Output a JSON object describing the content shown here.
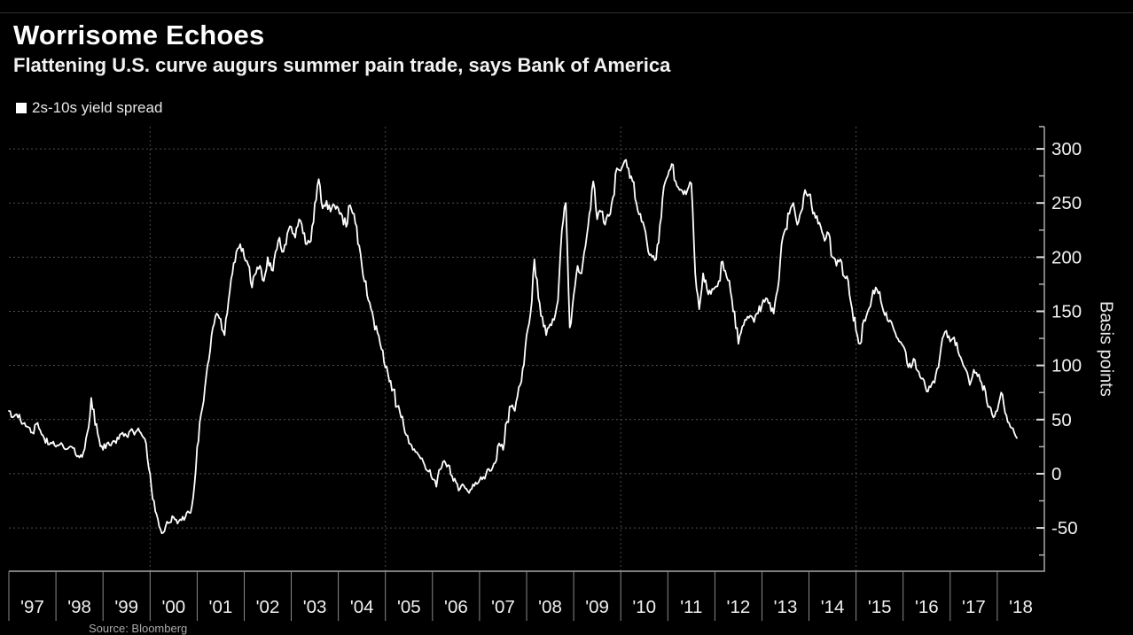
{
  "header": {
    "title": "Worrisome Echoes",
    "subtitle": "Flattening U.S. curve augurs summer pain trade, says Bank of America"
  },
  "footer": {
    "source": "Source: Bloomberg"
  },
  "colors": {
    "background": "#000000",
    "line": "#ffffff",
    "axis": "#a8a8a8",
    "grid": "#525252",
    "tick_text": "#f1f1f1"
  },
  "chart_data": {
    "type": "line",
    "title": "Worrisome Echoes",
    "subtitle": "Flattening U.S. curve augurs summer pain trade, says Bank of America",
    "ylabel": "Basis points",
    "xlabel": "",
    "legend_position": "top-left",
    "grid": "dotted",
    "xlim": [
      1997,
      2019
    ],
    "ylim": [
      -90,
      320.5
    ],
    "y_axis": {
      "side": "right",
      "major_ticks": [
        300,
        250,
        200,
        150,
        100,
        50,
        0,
        -50
      ],
      "minor_ticks": [
        275,
        225,
        175,
        125,
        75,
        25,
        -25,
        -75
      ]
    },
    "x_axis": {
      "labels": [
        "'97",
        "'98",
        "'99",
        "'00",
        "'01",
        "'02",
        "'03",
        "'04",
        "'05",
        "'06",
        "'07",
        "'08",
        "'09",
        "'10",
        "'11",
        "'12",
        "'13",
        "'14",
        "'15",
        "'16",
        "'17",
        "'18"
      ],
      "first_label_year": 1997,
      "gridline_years": [
        2000,
        2005,
        2010,
        2015
      ]
    },
    "series": [
      {
        "name": "2s-10s yield spread",
        "unit": "basis points",
        "frequency": "monthly",
        "x_start_year": 1997.0,
        "x_step_years": 0.0833333,
        "values": [
          58,
          52,
          55,
          49,
          47,
          43,
          38,
          46,
          40,
          33,
          27,
          28,
          25,
          27,
          24,
          23,
          25,
          18,
          15,
          20,
          38,
          70,
          45,
          32,
          22,
          28,
          26,
          30,
          32,
          38,
          35,
          40,
          36,
          42,
          35,
          28,
          0,
          -25,
          -42,
          -55,
          -48,
          -45,
          -40,
          -46,
          -43,
          -40,
          -36,
          -22,
          25,
          55,
          80,
          105,
          135,
          148,
          143,
          128,
          160,
          185,
          205,
          212,
          200,
          193,
          172,
          185,
          192,
          178,
          200,
          188,
          205,
          218,
          205,
          222,
          228,
          218,
          235,
          222,
          212,
          215,
          250,
          272,
          245,
          252,
          242,
          248,
          245,
          238,
          228,
          248,
          240,
          212,
          192,
          178,
          158,
          142,
          130,
          115,
          98,
          85,
          78,
          62,
          52,
          38,
          28,
          22,
          20,
          14,
          8,
          2,
          -5,
          -12,
          4,
          12,
          8,
          -2,
          -8,
          -14,
          -11,
          -16,
          -14,
          -8,
          -6,
          -3,
          4,
          3,
          10,
          28,
          22,
          48,
          62,
          58,
          80,
          97,
          128,
          148,
          198,
          162,
          145,
          128,
          138,
          142,
          160,
          225,
          250,
          135,
          165,
          192,
          185,
          210,
          240,
          270,
          235,
          242,
          230,
          238,
          255,
          282,
          280,
          289,
          282,
          270,
          250,
          240,
          228,
          205,
          200,
          198,
          230,
          265,
          275,
          286,
          270,
          262,
          258,
          262,
          268,
          185,
          152,
          185,
          170,
          166,
          172,
          178,
          196,
          182,
          168,
          150,
          120,
          136,
          142,
          146,
          140,
          148,
          156,
          162,
          158,
          148,
          170,
          212,
          226,
          240,
          250,
          230,
          242,
          262,
          258,
          240,
          238,
          228,
          215,
          222,
          200,
          192,
          198,
          182,
          178,
          152,
          132,
          120,
          142,
          150,
          162,
          172,
          168,
          150,
          142,
          140,
          130,
          122,
          118,
          102,
          98,
          105,
          94,
          88,
          76,
          80,
          84,
          98,
          125,
          132,
          122,
          126,
          113,
          104,
          96,
          82,
          96,
          90,
          84,
          76,
          62,
          52,
          58,
          75,
          56,
          47,
          42,
          33
        ]
      }
    ]
  }
}
